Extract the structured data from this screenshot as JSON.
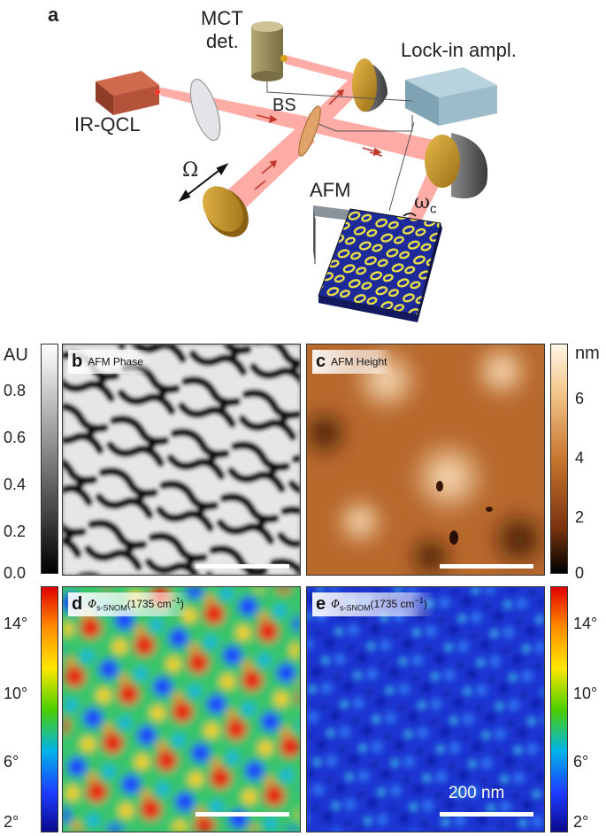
{
  "panel_a": {
    "letter": "a",
    "labels": {
      "mct": "MCT",
      "det": "det.",
      "lockin": "Lock-in ampl.",
      "qcl": "IR-QCL",
      "bs": "BS",
      "omega": "Ω",
      "afm": "AFM",
      "omega_c": "ω",
      "omega_c_sub": "c"
    },
    "colors": {
      "beam": "#ff5a50",
      "qcl": "#b5533a",
      "detector": "#9c8f5e",
      "lockin": "#8fb3c4",
      "mirror": "#c89a2e",
      "sample_blue": "#1e2a9a",
      "sample_yellow": "#e8e04a"
    }
  },
  "panel_b": {
    "letter": "b",
    "title": "AFM Phase",
    "colorbar": {
      "unit": "AU",
      "ticks": [
        "0.8",
        "0.6",
        "0.4",
        "0.2",
        "0.0"
      ],
      "colormap": "grayscale"
    }
  },
  "panel_c": {
    "letter": "c",
    "title": "AFM Height",
    "colorbar": {
      "unit": "nm",
      "ticks": [
        "6",
        "4",
        "2",
        "0"
      ],
      "colormap": "copper"
    }
  },
  "panel_d": {
    "letter": "d",
    "title_sym": "Φ",
    "title_sub": "s-SNOM",
    "title_rest": "(1735 cm",
    "title_sup": "−1",
    "title_close": ")",
    "colorbar": {
      "ticks": [
        "14°",
        "10°",
        "6°",
        "2°"
      ],
      "colormap": "jet"
    }
  },
  "panel_e": {
    "letter": "e",
    "title_sym": "Φ",
    "title_sub": "s-SNOM",
    "title_rest": "(1735 cm",
    "title_sup": "−1",
    "title_close": ")",
    "colorbar": {
      "ticks": [
        "14°",
        "10°",
        "6°",
        "2°"
      ],
      "colormap": "jet"
    },
    "scalebar_label": "200 nm"
  }
}
